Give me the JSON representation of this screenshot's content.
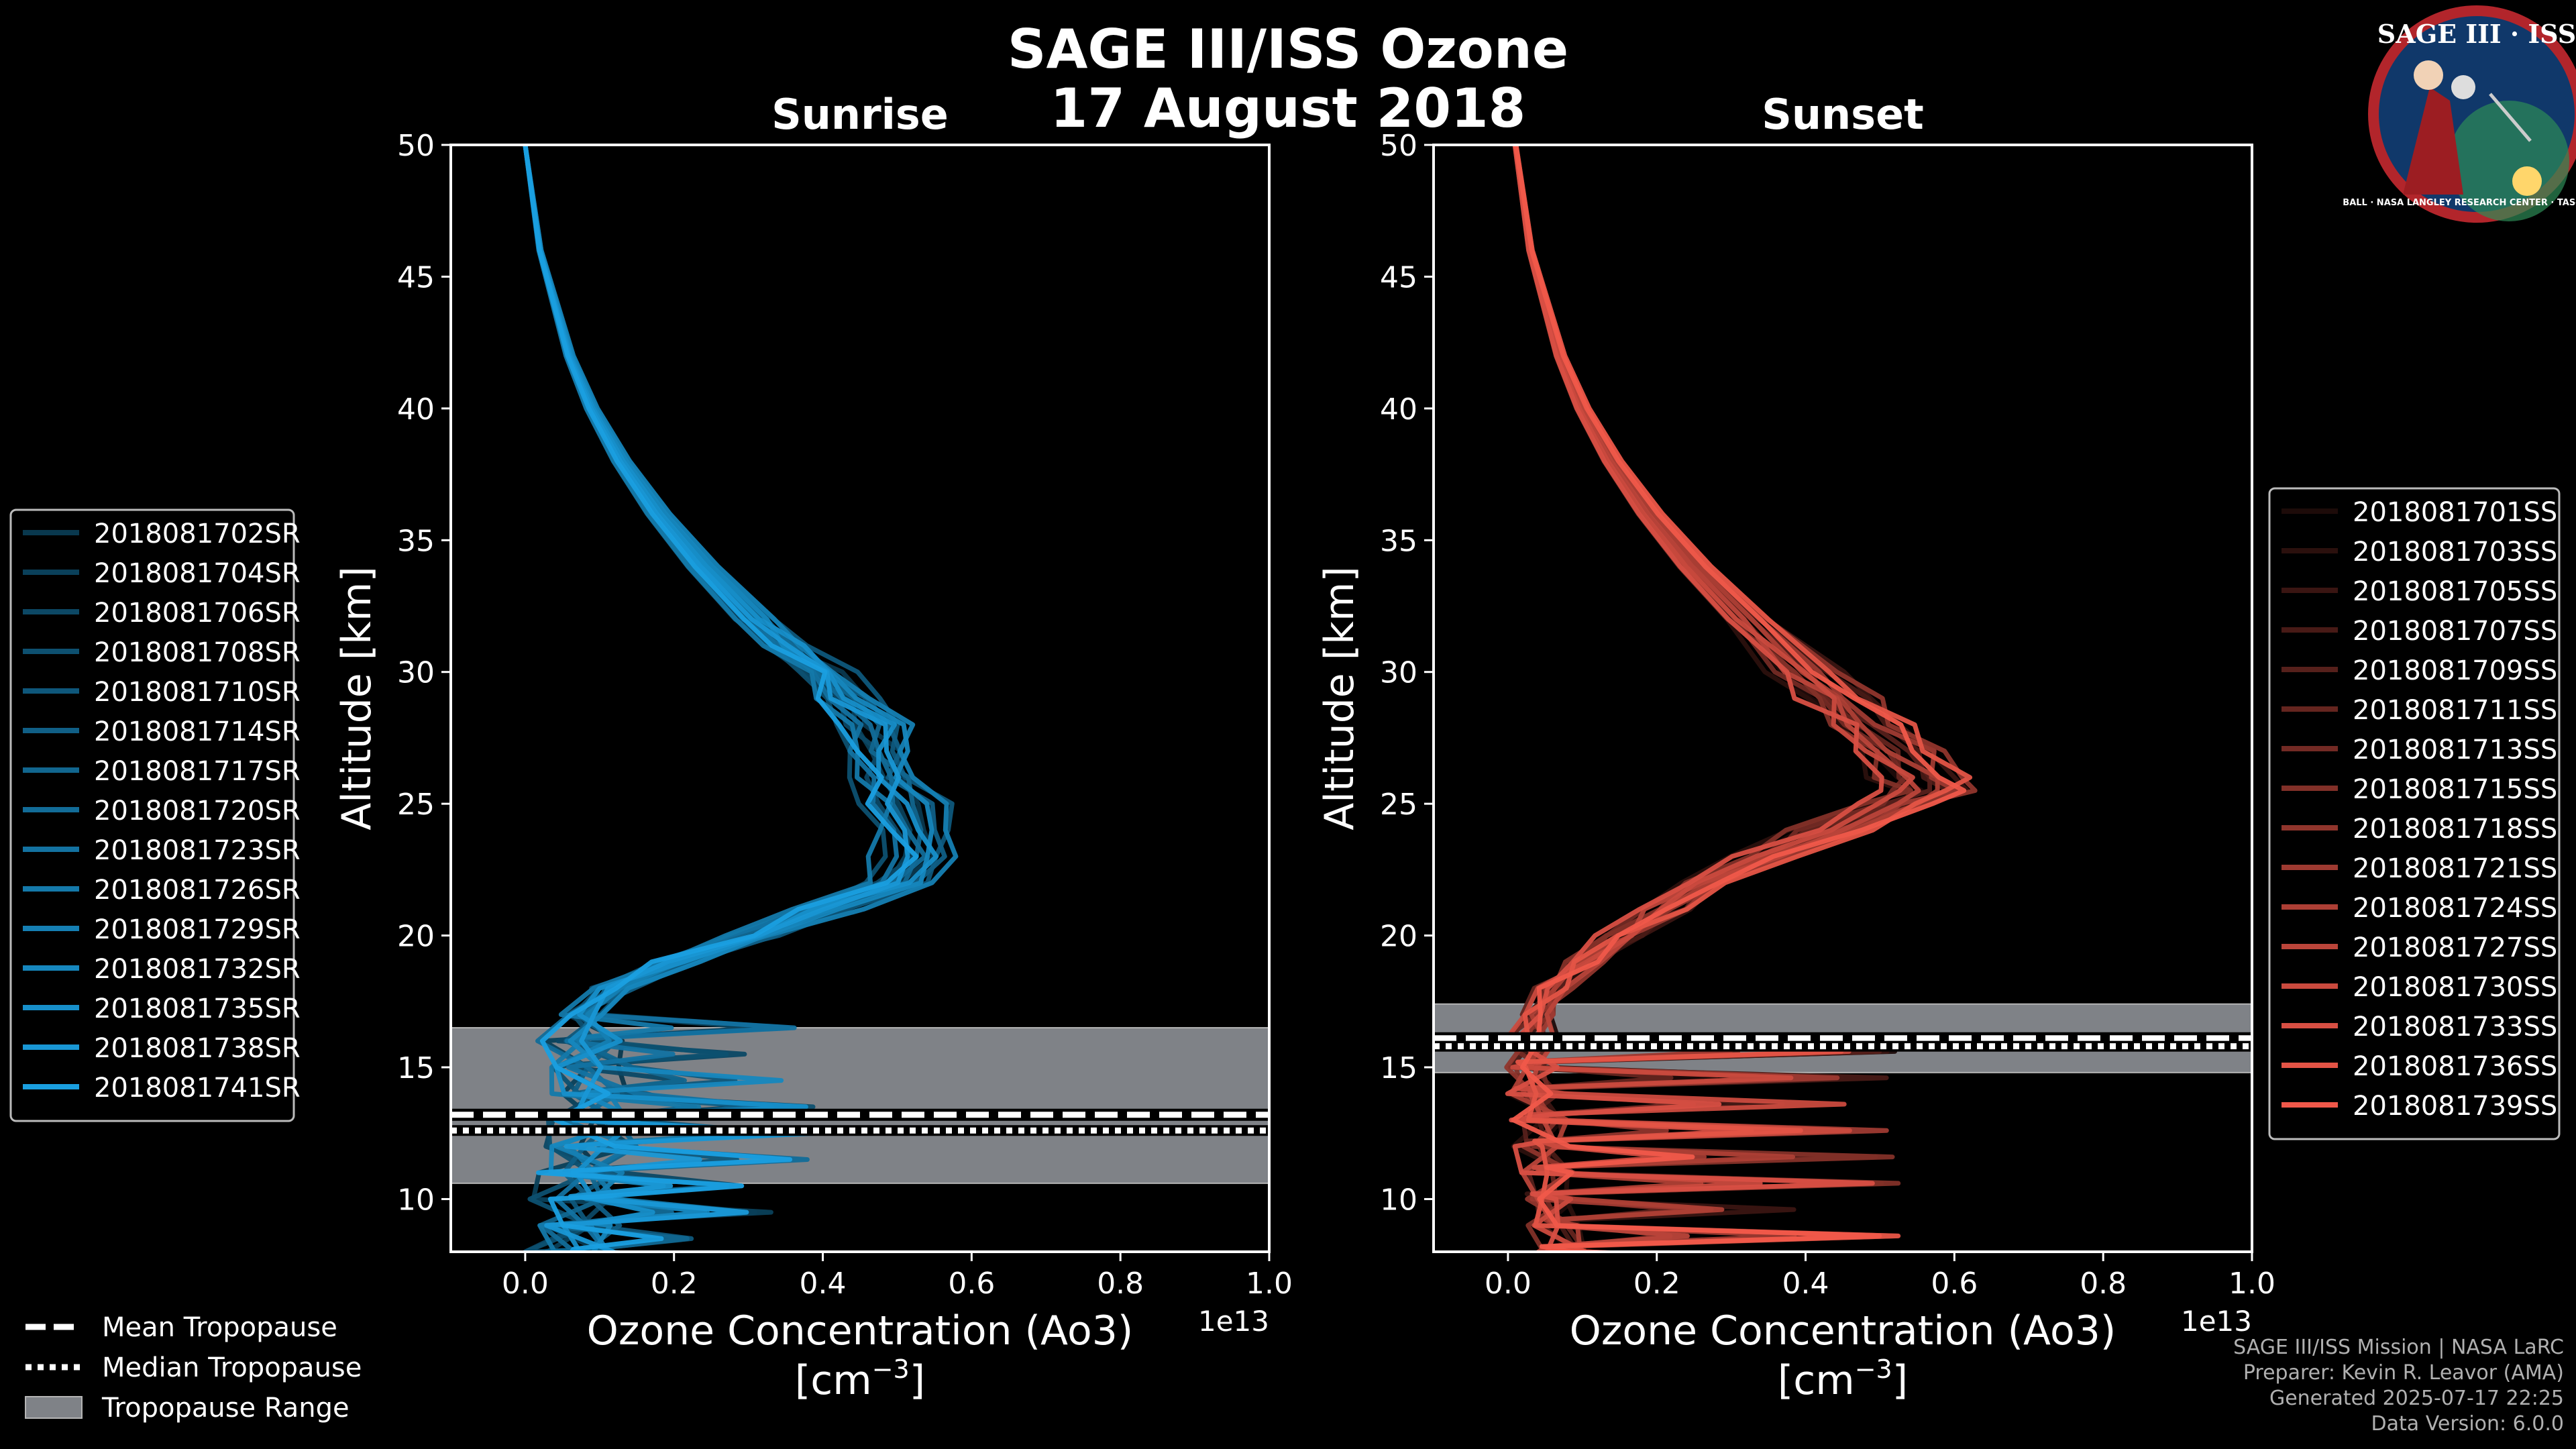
{
  "figure": {
    "title_line1": "SAGE III/ISS Ozone",
    "title_line2": "17 August 2018",
    "logo_text": "SAGE III · ISS",
    "logo_ring_text": "BALL · NASA LANGLEY RESEARCH CENTER · TAS-I · ESA",
    "credits": [
      "SAGE III/ISS Mission | NASA LaRC",
      "Preparer: Kevin R. Leavor (AMA)",
      "Generated 2025-07-17 22:25",
      "Data Version: 6.0.0"
    ],
    "tropopause_legend": [
      {
        "label": "Mean Tropopause",
        "style": "dashed"
      },
      {
        "label": "Median Tropopause",
        "style": "dotted"
      },
      {
        "label": "Tropopause Range",
        "style": "patch"
      }
    ]
  },
  "chart_data": [
    {
      "type": "line",
      "title": "Sunrise",
      "xlabel": "Ozone Concentration (Ao3)",
      "xunit": "[cm",
      "xunit_exp": "−3",
      "xunit_close": "]",
      "ylabel": "Altitude [km]",
      "offset_text": "1e13",
      "xlim": [
        -0.1,
        1.0
      ],
      "ylim": [
        8,
        50
      ],
      "xticks": [
        0.0,
        0.2,
        0.4,
        0.6,
        0.8,
        1.0
      ],
      "xtick_labels": [
        "0.0",
        "0.2",
        "0.4",
        "0.6",
        "0.8",
        "1.0"
      ],
      "yticks": [
        10,
        15,
        20,
        25,
        30,
        35,
        40,
        45,
        50
      ],
      "ytick_labels": [
        "10",
        "15",
        "20",
        "25",
        "30",
        "35",
        "40",
        "45",
        "50"
      ],
      "tropopause": {
        "mean": 13.2,
        "median": 12.6,
        "range": [
          10.6,
          16.5
        ]
      },
      "base_color": "#1a9fe0",
      "legend_position": "left",
      "base_profile": {
        "altitude": [
          50,
          48,
          46,
          44,
          42,
          40,
          38,
          36,
          34,
          32,
          31,
          30,
          29,
          28,
          27,
          26,
          25,
          24,
          23,
          22,
          21,
          20,
          19,
          18,
          17,
          16,
          15,
          14,
          13,
          12,
          11,
          10,
          9,
          8
        ],
        "ozone": [
          0.0,
          0.01,
          0.02,
          0.04,
          0.06,
          0.09,
          0.13,
          0.18,
          0.24,
          0.31,
          0.35,
          0.4,
          0.44,
          0.47,
          0.48,
          0.49,
          0.51,
          0.53,
          0.53,
          0.49,
          0.4,
          0.3,
          0.2,
          0.12,
          0.08,
          0.07,
          0.09,
          0.1,
          0.1,
          0.09,
          0.08,
          0.07,
          0.07,
          0.06
        ]
      },
      "series": [
        {
          "name": "2018081702SR",
          "seed": 1,
          "shade": 0.35
        },
        {
          "name": "2018081704SR",
          "seed": 2,
          "shade": 0.4
        },
        {
          "name": "2018081706SR",
          "seed": 3,
          "shade": 0.45
        },
        {
          "name": "2018081708SR",
          "seed": 4,
          "shade": 0.5
        },
        {
          "name": "2018081710SR",
          "seed": 5,
          "shade": 0.55
        },
        {
          "name": "2018081714SR",
          "seed": 6,
          "shade": 0.6
        },
        {
          "name": "2018081717SR",
          "seed": 7,
          "shade": 0.64
        },
        {
          "name": "2018081720SR",
          "seed": 8,
          "shade": 0.68
        },
        {
          "name": "2018081723SR",
          "seed": 9,
          "shade": 0.72
        },
        {
          "name": "2018081726SR",
          "seed": 10,
          "shade": 0.76
        },
        {
          "name": "2018081729SR",
          "seed": 11,
          "shade": 0.8
        },
        {
          "name": "2018081732SR",
          "seed": 12,
          "shade": 0.85
        },
        {
          "name": "2018081735SR",
          "seed": 13,
          "shade": 0.9
        },
        {
          "name": "2018081738SR",
          "seed": 14,
          "shade": 0.95
        },
        {
          "name": "2018081741SR",
          "seed": 15,
          "shade": 1.0
        }
      ]
    },
    {
      "type": "line",
      "title": "Sunset",
      "xlabel": "Ozone Concentration (Ao3)",
      "xunit": "[cm",
      "xunit_exp": "−3",
      "xunit_close": "]",
      "ylabel": "Altitude [km]",
      "offset_text": "1e13",
      "xlim": [
        -0.1,
        1.0
      ],
      "ylim": [
        8,
        50
      ],
      "xticks": [
        0.0,
        0.2,
        0.4,
        0.6,
        0.8,
        1.0
      ],
      "xtick_labels": [
        "0.0",
        "0.2",
        "0.4",
        "0.6",
        "0.8",
        "1.0"
      ],
      "yticks": [
        10,
        15,
        20,
        25,
        30,
        35,
        40,
        45,
        50
      ],
      "ytick_labels": [
        "10",
        "15",
        "20",
        "25",
        "30",
        "35",
        "40",
        "45",
        "50"
      ],
      "tropopause": {
        "mean": 16.1,
        "median": 15.8,
        "range": [
          14.8,
          17.4
        ]
      },
      "base_color": "#f0584a",
      "legend_position": "right",
      "base_profile": {
        "altitude": [
          50,
          48,
          46,
          44,
          42,
          40,
          38,
          36,
          34,
          32,
          30,
          29,
          28,
          27,
          26,
          25.5,
          25,
          24,
          23,
          22,
          21,
          20,
          19,
          18,
          17,
          16,
          15,
          14,
          13,
          12,
          11,
          10,
          9,
          8
        ],
        "ozone": [
          0.01,
          0.02,
          0.03,
          0.05,
          0.07,
          0.1,
          0.14,
          0.19,
          0.25,
          0.32,
          0.4,
          0.44,
          0.48,
          0.52,
          0.55,
          0.56,
          0.52,
          0.43,
          0.35,
          0.28,
          0.21,
          0.15,
          0.1,
          0.06,
          0.04,
          0.03,
          0.03,
          0.04,
          0.04,
          0.05,
          0.05,
          0.06,
          0.06,
          0.07
        ]
      },
      "series": [
        {
          "name": "2018081701SS",
          "seed": 21,
          "shade": 0.12
        },
        {
          "name": "2018081703SS",
          "seed": 22,
          "shade": 0.18
        },
        {
          "name": "2018081705SS",
          "seed": 23,
          "shade": 0.24
        },
        {
          "name": "2018081707SS",
          "seed": 24,
          "shade": 0.3
        },
        {
          "name": "2018081709SS",
          "seed": 25,
          "shade": 0.36
        },
        {
          "name": "2018081711SS",
          "seed": 26,
          "shade": 0.42
        },
        {
          "name": "2018081713SS",
          "seed": 27,
          "shade": 0.48
        },
        {
          "name": "2018081715SS",
          "seed": 28,
          "shade": 0.54
        },
        {
          "name": "2018081718SS",
          "seed": 29,
          "shade": 0.6
        },
        {
          "name": "2018081721SS",
          "seed": 30,
          "shade": 0.66
        },
        {
          "name": "2018081724SS",
          "seed": 31,
          "shade": 0.72
        },
        {
          "name": "2018081727SS",
          "seed": 32,
          "shade": 0.78
        },
        {
          "name": "2018081730SS",
          "seed": 33,
          "shade": 0.84
        },
        {
          "name": "2018081733SS",
          "seed": 34,
          "shade": 0.9
        },
        {
          "name": "2018081736SS",
          "seed": 35,
          "shade": 0.95
        },
        {
          "name": "2018081739SS",
          "seed": 36,
          "shade": 1.0
        }
      ]
    }
  ]
}
